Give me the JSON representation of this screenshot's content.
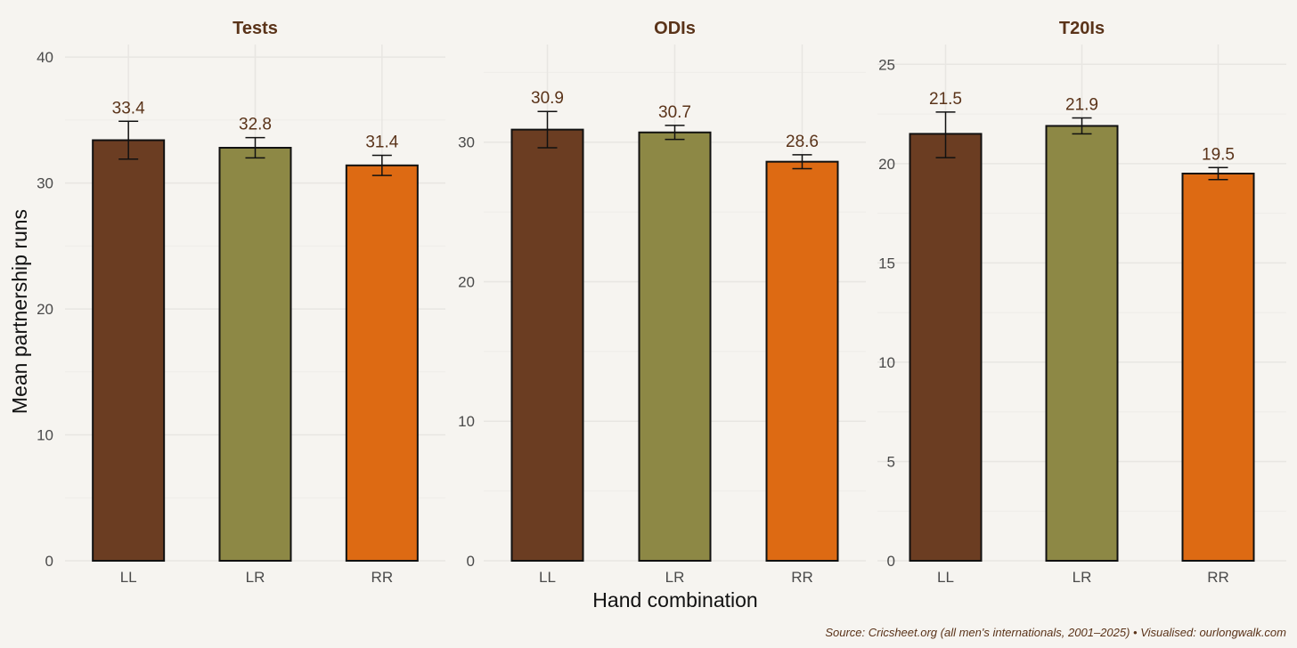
{
  "chart_data": [
    {
      "type": "bar",
      "title": "Tests",
      "categories": [
        "LL",
        "LR",
        "RR"
      ],
      "values": [
        33.4,
        32.8,
        31.4
      ],
      "value_labels": [
        "33.4",
        "32.8",
        "31.4"
      ],
      "error_low": [
        31.9,
        32.0,
        30.6
      ],
      "error_high": [
        34.9,
        33.6,
        32.2
      ],
      "ylim": [
        0,
        41
      ],
      "yticks": [
        0,
        10,
        20,
        30,
        40
      ],
      "ytick_labels": [
        "0",
        "10",
        "20",
        "30",
        "40"
      ],
      "colors": [
        "#6b3d22",
        "#8d8845",
        "#dd6a13"
      ]
    },
    {
      "type": "bar",
      "title": "ODIs",
      "categories": [
        "LL",
        "LR",
        "RR"
      ],
      "values": [
        30.9,
        30.7,
        28.6
      ],
      "value_labels": [
        "30.9",
        "30.7",
        "28.6"
      ],
      "error_low": [
        29.6,
        30.2,
        28.1
      ],
      "error_high": [
        32.2,
        31.2,
        29.1
      ],
      "ylim": [
        0,
        37
      ],
      "yticks": [
        0,
        10,
        20,
        30
      ],
      "ytick_labels": [
        "0",
        "10",
        "20",
        "30"
      ],
      "colors": [
        "#6b3d22",
        "#8d8845",
        "#dd6a13"
      ]
    },
    {
      "type": "bar",
      "title": "T20Is",
      "categories": [
        "LL",
        "LR",
        "RR"
      ],
      "values": [
        21.5,
        21.9,
        19.5
      ],
      "value_labels": [
        "21.5",
        "21.9",
        "19.5"
      ],
      "error_low": [
        20.3,
        21.5,
        19.2
      ],
      "error_high": [
        22.6,
        22.3,
        19.8
      ],
      "ylim": [
        0,
        26
      ],
      "yticks": [
        0,
        5,
        10,
        15,
        20,
        25
      ],
      "ytick_labels": [
        "0",
        "5",
        "10",
        "15",
        "20",
        "25"
      ],
      "colors": [
        "#6b3d22",
        "#8d8845",
        "#dd6a13"
      ]
    }
  ],
  "labels": {
    "ylabel": "Mean partnership runs",
    "xlabel": "Hand combination",
    "caption": "Source: Cricsheet.org (all men's internationals, 2001–2025) • Visualised: ourlongwalk.com"
  }
}
